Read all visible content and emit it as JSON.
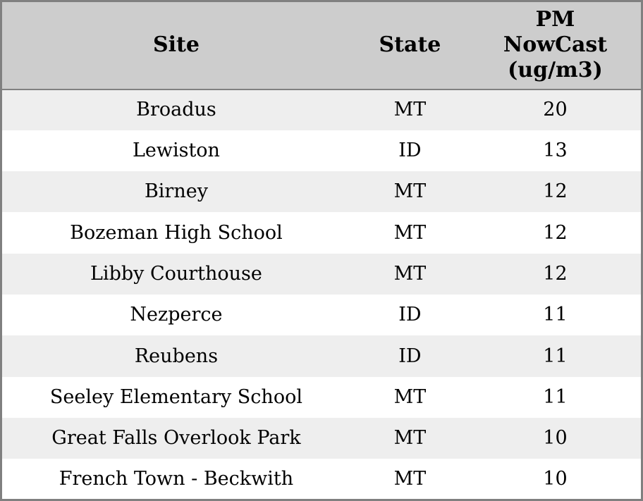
{
  "chart_data": {
    "type": "table",
    "title": "",
    "columns": [
      "Site",
      "State",
      "PM NowCast (ug/m3)"
    ],
    "rows": [
      [
        "Broadus",
        "MT",
        20
      ],
      [
        "Lewiston",
        "ID",
        13
      ],
      [
        "Birney",
        "MT",
        12
      ],
      [
        "Bozeman High School",
        "MT",
        12
      ],
      [
        "Libby Courthouse",
        "MT",
        12
      ],
      [
        "Nezperce",
        "ID",
        11
      ],
      [
        "Reubens",
        "ID",
        11
      ],
      [
        "Seeley Elementary School",
        "MT",
        11
      ],
      [
        "Great Falls Overlook Park",
        "MT",
        10
      ],
      [
        "French Town - Beckwith",
        "MT",
        10
      ]
    ],
    "layout": {
      "striped_rows": true,
      "alt_row_style": "odd rows shaded",
      "alignment": "center"
    }
  },
  "colors": {
    "header_bg": "#cdcdcd",
    "border": "#808080",
    "row_alt_bg": "#eeeeee",
    "row_bg": "#ffffff",
    "text": "#000000"
  }
}
